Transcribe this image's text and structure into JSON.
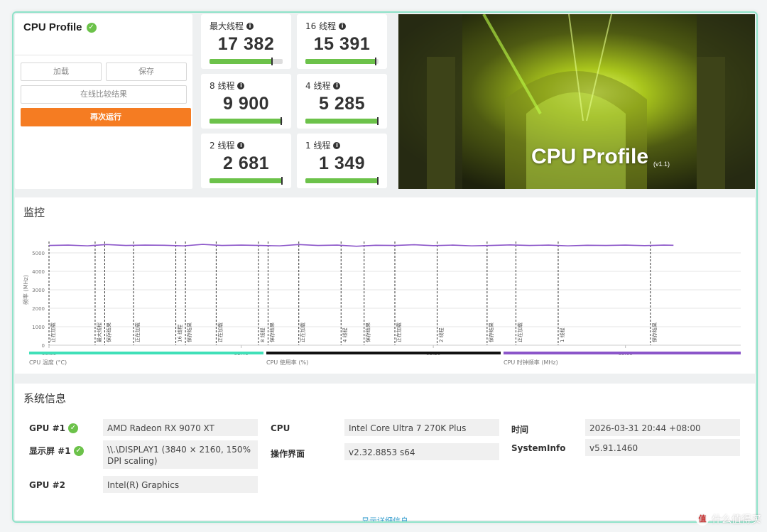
{
  "app": {
    "title": "CPU Profile"
  },
  "actions": {
    "load": "加载",
    "save": "保存",
    "compare": "在线比较结果",
    "rerun": "再次运行"
  },
  "scores": [
    {
      "label": "最大线程",
      "value": "17 382",
      "fill": 0.85
    },
    {
      "label": "16 线程",
      "value": "15 391",
      "fill": 0.96
    },
    {
      "label": "8 线程",
      "value": "9 900",
      "fill": 0.98
    },
    {
      "label": "4 线程",
      "value": "5 285",
      "fill": 0.99
    },
    {
      "label": "2 线程",
      "value": "2 681",
      "fill": 0.99
    },
    {
      "label": "1 线程",
      "value": "1 349",
      "fill": 0.99
    }
  ],
  "banner": {
    "title": "CPU Profile",
    "version": "(v1.1)"
  },
  "monitor": {
    "title": "监控",
    "legend": [
      {
        "label": "CPU 温度 (°C)",
        "color": "#40e0b8"
      },
      {
        "label": "CPU 使用率 (%)",
        "color": "#111111"
      },
      {
        "label": "CPU 时钟频率 (MHz)",
        "color": "#8b55c9"
      }
    ]
  },
  "chart_data": {
    "type": "line",
    "ylabel": "频率 (MHz)",
    "ylim": [
      0,
      6000
    ],
    "yticks": [
      "0",
      "1000",
      "2000",
      "3000",
      "4000",
      "5000"
    ],
    "xticks": [
      "00:00",
      "01:40",
      "03:20",
      "05:00"
    ],
    "xlim_seconds": [
      0,
      360
    ],
    "series": [
      {
        "name": "CPU 时钟频率 (MHz)",
        "color": "#8b55c9",
        "x": [
          0,
          10,
          20,
          30,
          40,
          50,
          60,
          70,
          80,
          90,
          100,
          110,
          120,
          130,
          140,
          150,
          160,
          170,
          180,
          190,
          200,
          210,
          220,
          230,
          240,
          250,
          260,
          270,
          280,
          290,
          300,
          310,
          320,
          325
        ],
        "values": [
          5400,
          5420,
          5380,
          5450,
          5400,
          5420,
          5410,
          5380,
          5460,
          5400,
          5420,
          5400,
          5380,
          5450,
          5400,
          5420,
          5360,
          5410,
          5400,
          5440,
          5390,
          5420,
          5380,
          5400,
          5430,
          5400,
          5420,
          5380,
          5410,
          5400,
          5420,
          5390,
          5420,
          5410
        ]
      }
    ],
    "markers": [
      {
        "t": 0,
        "label": "正在加载"
      },
      {
        "t": 24,
        "label": "最大线程"
      },
      {
        "t": 29,
        "label": "保存结果"
      },
      {
        "t": 44,
        "label": "正在加载"
      },
      {
        "t": 66,
        "label": "16 线程"
      },
      {
        "t": 71,
        "label": "保存结果"
      },
      {
        "t": 87,
        "label": "正在加载"
      },
      {
        "t": 109,
        "label": "8 线程"
      },
      {
        "t": 114,
        "label": "保存结果"
      },
      {
        "t": 130,
        "label": "正在加载"
      },
      {
        "t": 152,
        "label": "4 线程"
      },
      {
        "t": 164,
        "label": "保存结果"
      },
      {
        "t": 180,
        "label": "正在加载"
      },
      {
        "t": 202,
        "label": "2 线程"
      },
      {
        "t": 228,
        "label": "保存结果"
      },
      {
        "t": 243,
        "label": "正在加载"
      },
      {
        "t": 265,
        "label": "1 线程"
      },
      {
        "t": 313,
        "label": "保存结果"
      }
    ]
  },
  "system_info": {
    "title": "系统信息",
    "rows": [
      {
        "label": "GPU #1",
        "check": true,
        "value": "AMD Radeon RX 9070 XT"
      },
      {
        "label": "显示屏 #1",
        "check": true,
        "value": "\\\\.\\DISPLAY1 (3840 × 2160, 150% DPI scaling)"
      },
      {
        "label": "GPU #2",
        "check": false,
        "value": "Intel(R) Graphics"
      },
      {
        "label": "CPU",
        "value": "Intel Core Ultra 7 270K Plus"
      },
      {
        "label": "操作界面",
        "value": "v2.32.8853 s64"
      },
      {
        "label": "时间",
        "value": "2026-03-31 20:44 +08:00"
      },
      {
        "label": "SystemInfo",
        "value": "v5.91.1460"
      }
    ],
    "detail_link": "显示详细信息"
  },
  "watermark": {
    "text": "什么值得买",
    "logo": "值"
  }
}
